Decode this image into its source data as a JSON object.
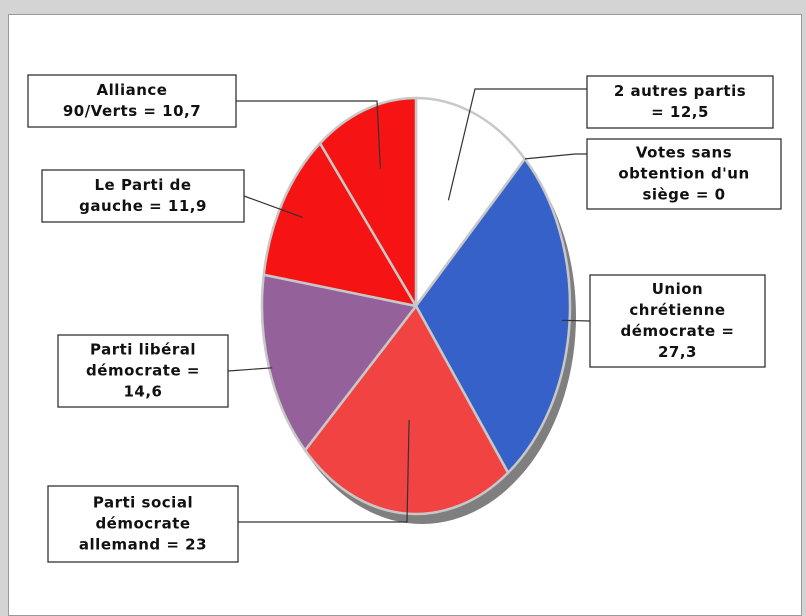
{
  "chart_data": {
    "type": "pie",
    "title": "",
    "slices": [
      {
        "key": "autres",
        "lines": [
          "2 autres partis",
          "= 12,5"
        ],
        "value": 12.5,
        "color": "#ffffff"
      },
      {
        "key": "votes-sans",
        "lines": [
          "Votes sans",
          "obtention d'un",
          "siège = 0"
        ],
        "value": 0,
        "color": "#ffffff"
      },
      {
        "key": "cdu",
        "lines": [
          "Union",
          "chrétienne",
          "démocrate =",
          "27,3"
        ],
        "value": 27.3,
        "color": "#3561c8"
      },
      {
        "key": "spd",
        "lines": [
          "Parti social",
          "démocrate",
          "allemand = 23"
        ],
        "value": 23,
        "color": "#f24343"
      },
      {
        "key": "fdp",
        "lines": [
          "Parti libéral",
          "démocrate =",
          "14,6"
        ],
        "value": 14.6,
        "color": "#94619a"
      },
      {
        "key": "linke",
        "lines": [
          "Le Parti de",
          "gauche = 11,9"
        ],
        "value": 11.9,
        "color": "#f51313"
      },
      {
        "key": "gruene",
        "lines": [
          "Alliance",
          "90/Verts = 10,7"
        ],
        "value": 10.7,
        "color": "#f51313"
      }
    ]
  }
}
